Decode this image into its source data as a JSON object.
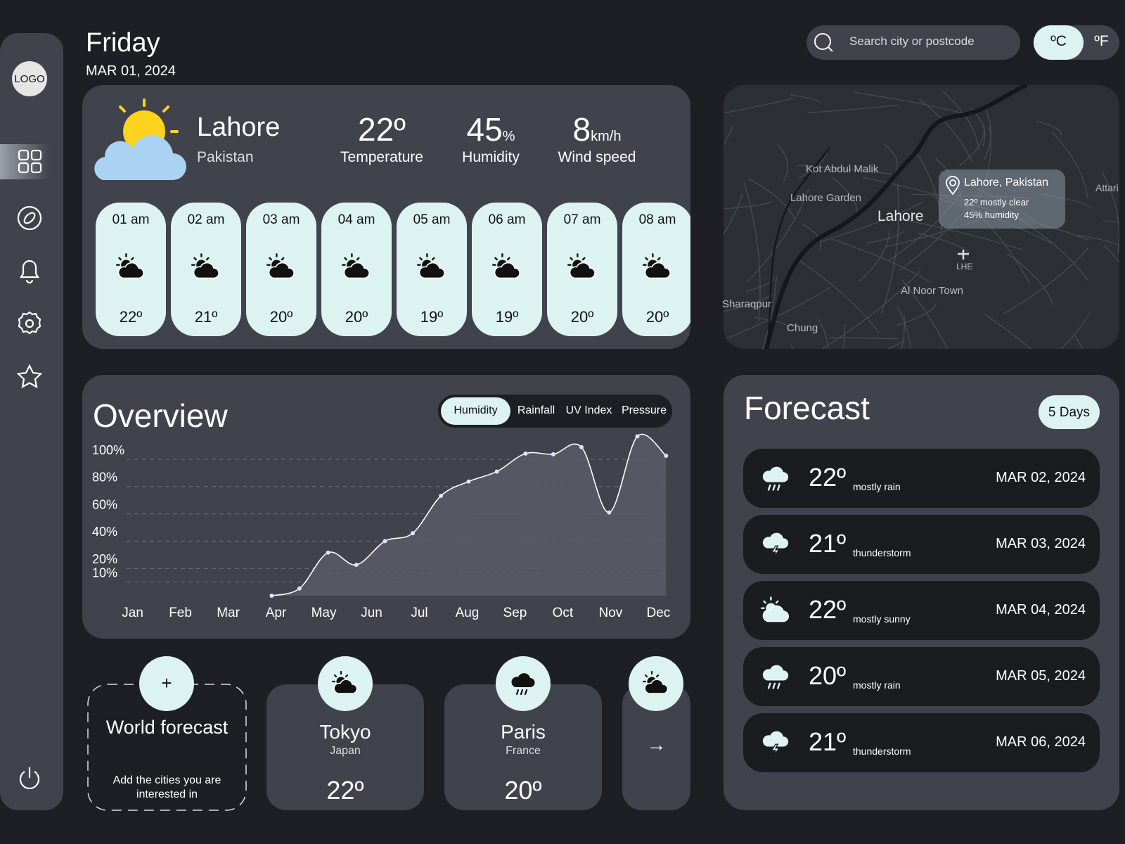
{
  "header": {
    "day": "Friday",
    "date": "MAR 01, 2024"
  },
  "logo": "LOGO",
  "search": {
    "placeholder": "Search city or postcode"
  },
  "units": [
    "ºC",
    "ºF"
  ],
  "current": {
    "city": "Lahore",
    "country": "Pakistan",
    "temperature": {
      "value": "22º",
      "label": "Temperature"
    },
    "humidity": {
      "value": "45",
      "unit": "%",
      "label": "Humidity"
    },
    "wind": {
      "value": "8",
      "unit": "km/h",
      "label": "Wind speed"
    },
    "hourly": [
      {
        "time": "01 am",
        "temp": "22º"
      },
      {
        "time": "02 am",
        "temp": "21º"
      },
      {
        "time": "03 am",
        "temp": "20º"
      },
      {
        "time": "04 am",
        "temp": "20º"
      },
      {
        "time": "05 am",
        "temp": "19º"
      },
      {
        "time": "06 am",
        "temp": "19º"
      },
      {
        "time": "07 am",
        "temp": "20º"
      },
      {
        "time": "08 am",
        "temp": "20º"
      }
    ]
  },
  "map": {
    "labels": [
      "Kot Abdul Malik",
      "Lahore Garden",
      "Lahore",
      "Sharaqpur",
      "Chung",
      "Al Noor Town",
      "LHE",
      "Attari"
    ],
    "tooltip": {
      "title": "Lahore, Pakistan",
      "line1": "22º mostly clear",
      "line2": "45% humidity"
    }
  },
  "overview": {
    "title": "Overview",
    "tabs": [
      "Humidity",
      "Rainfall",
      "UV Index",
      "Pressure"
    ],
    "chart": {
      "type": "line",
      "x": [
        2.91,
        3.49,
        4.09,
        4.68,
        5.28,
        5.86,
        6.45,
        7.03,
        7.62,
        8.22,
        8.8,
        9.39,
        9.97,
        10.56,
        11.16
      ],
      "values": [
        0,
        5.3,
        31.6,
        22.6,
        40,
        45.8,
        73.2,
        83.7,
        91,
        104.2,
        103.7,
        108.9,
        61,
        116.8,
        102.6
      ],
      "xlim": [
        -0.2,
        11.2
      ],
      "xticks": [
        {
          "value": 0,
          "label": "Jan"
        },
        {
          "value": 1,
          "label": "Feb"
        },
        {
          "value": 2,
          "label": "Mar"
        },
        {
          "value": 3,
          "label": "Apr"
        },
        {
          "value": 4,
          "label": "May"
        },
        {
          "value": 5,
          "label": "Jun"
        },
        {
          "value": 6,
          "label": "Jul"
        },
        {
          "value": 7,
          "label": "Aug"
        },
        {
          "value": 8,
          "label": "Sep"
        },
        {
          "value": 9,
          "label": "Oct"
        },
        {
          "value": 10,
          "label": "Nov"
        },
        {
          "value": 11,
          "label": "Dec"
        }
      ],
      "ylim": [
        0,
        100
      ],
      "yticks": [
        {
          "value": 10,
          "label": "10%"
        },
        {
          "value": 20,
          "label": "20%"
        },
        {
          "value": 40,
          "label": "40%"
        },
        {
          "value": 60,
          "label": "60%"
        },
        {
          "value": 80,
          "label": "80%"
        },
        {
          "value": 100,
          "label": "100%"
        }
      ],
      "grid": true,
      "color": "#ffffff"
    }
  },
  "forecast": {
    "title": "Forecast",
    "range": "5 Days",
    "days": [
      {
        "temp": "22º",
        "condition": "mostly rain",
        "date": "MAR 02, 2024"
      },
      {
        "temp": "21º",
        "condition": "thunderstorm",
        "date": "MAR 03, 2024"
      },
      {
        "temp": "22º",
        "condition": "mostly sunny",
        "date": "MAR 04, 2024"
      },
      {
        "temp": "20º",
        "condition": "mostly rain",
        "date": "MAR 05, 2024"
      },
      {
        "temp": "21º",
        "condition": "thunderstorm",
        "date": "MAR 06, 2024"
      }
    ]
  },
  "world": {
    "add_icon": "+",
    "add_title": "World forecast",
    "add_text": "Add the cities you are interested in",
    "cities": [
      {
        "name": "Tokyo",
        "country": "Japan",
        "temp": "22º"
      },
      {
        "name": "Paris",
        "country": "France",
        "temp": "20º"
      }
    ],
    "more": "→"
  }
}
